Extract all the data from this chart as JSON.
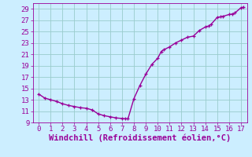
{
  "x": [
    0,
    0.5,
    1,
    1.5,
    2,
    2.5,
    3,
    3.5,
    4,
    4.5,
    5,
    5.5,
    6,
    6.5,
    7,
    7.3,
    7.5,
    8,
    8.5,
    9,
    9.5,
    10,
    10.3,
    10.5,
    11,
    11.5,
    12,
    12.5,
    13,
    13.5,
    14,
    14.3,
    14.5,
    15,
    15.3,
    15.5,
    16,
    16.3,
    16.5,
    17,
    17.2
  ],
  "y": [
    14.0,
    13.3,
    13.0,
    12.7,
    12.3,
    12.0,
    11.8,
    11.6,
    11.5,
    11.2,
    10.5,
    10.2,
    10.0,
    9.8,
    9.7,
    9.65,
    9.65,
    13.2,
    15.5,
    17.5,
    19.2,
    20.3,
    21.5,
    21.8,
    22.3,
    23.0,
    23.5,
    24.0,
    24.2,
    25.2,
    25.8,
    26.0,
    26.3,
    27.5,
    27.6,
    27.7,
    28.0,
    28.1,
    28.3,
    29.2,
    29.3
  ],
  "line_color": "#990099",
  "marker_color": "#990099",
  "bg_color": "#cceeff",
  "grid_color": "#99cccc",
  "xlabel": "Windchill (Refroidissement éolien,°C)",
  "xlabel_color": "#990099",
  "xlim": [
    -0.5,
    17.5
  ],
  "ylim": [
    9,
    30
  ],
  "xticks": [
    0,
    1,
    2,
    3,
    4,
    5,
    6,
    7,
    8,
    9,
    10,
    11,
    12,
    13,
    14,
    15,
    16,
    17
  ],
  "yticks": [
    9,
    11,
    13,
    15,
    17,
    19,
    21,
    23,
    25,
    27,
    29
  ],
  "tick_color": "#990099",
  "tick_labelsize": 6.5,
  "xlabel_fontsize": 7.5,
  "line_width": 1.0,
  "marker_size": 3.5
}
